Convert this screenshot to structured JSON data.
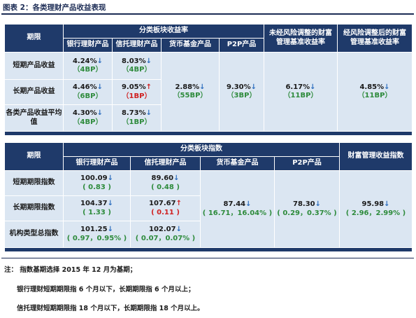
{
  "figure_title": "图表 2：各类理财产品收益表现",
  "table1": {
    "h_period": "期限",
    "h_group": "分类板块收益率",
    "h_unadj": "未经风险调整的财富管理基准收益率",
    "h_adj": "经风险调整后的财富管理基准收益率",
    "cols": [
      "银行理财产品",
      "信托理财产品",
      "货币基金产品",
      "P2P产品"
    ],
    "rows": [
      {
        "label": "短期产品收益",
        "bank": {
          "v": "4.24%",
          "d": "↓",
          "c": "（4BP）"
        },
        "trust": {
          "v": "8.03%",
          "d": "↓",
          "c": "（4BP）"
        }
      },
      {
        "label": "长期产品收益",
        "bank": {
          "v": "4.46%",
          "d": "↓",
          "c": "（6BP）"
        },
        "trust": {
          "v": "9.05%",
          "d": "↑",
          "c": "（1BP）"
        }
      },
      {
        "label": "各类产品收益平均值",
        "bank": {
          "v": "4.30%",
          "d": "↓",
          "c": "（4BP）"
        },
        "trust": {
          "v": "8.73%",
          "d": "↓",
          "c": "（1BP）"
        }
      }
    ],
    "money": {
      "v": "2.88%",
      "d": "↓",
      "c": "（55BP）"
    },
    "p2p": {
      "v": "9.30%",
      "d": "↓",
      "c": "（3BP）"
    },
    "unadj": {
      "v": "6.17%",
      "d": "↓",
      "c": "（11BP）"
    },
    "adj": {
      "v": "4.85%",
      "d": "↓",
      "c": "（11BP）"
    }
  },
  "table2": {
    "h_period": "期限",
    "h_group": "分类板块指数",
    "h_wealth": "财富管理收益指数",
    "cols": [
      "银行理财产品",
      "信托理财产品",
      "货币基金产品",
      "P2P产品"
    ],
    "rows": [
      {
        "label": "短期期限指数",
        "bank": {
          "v": "100.09",
          "d": "↓",
          "c": "( 0.83 )"
        },
        "trust": {
          "v": "89.60",
          "d": "↓",
          "c": "( 0.48 )"
        }
      },
      {
        "label": "长期期限指数",
        "bank": {
          "v": "104.37",
          "d": "↓",
          "c": "( 1.33 )"
        },
        "trust": {
          "v": "107.67",
          "d": "↑",
          "c": "( 0.11 )"
        }
      },
      {
        "label": "机构类型总指数",
        "bank": {
          "v": "101.25",
          "d": "↓",
          "c": "( 0.97，0.95% )"
        },
        "trust": {
          "v": "102.07",
          "d": "↓",
          "c": "( 0.07，0.07% )"
        }
      }
    ],
    "money": {
      "v": "87.44",
      "d": "↓",
      "c": "( 16.71，16.04% )"
    },
    "p2p": {
      "v": "78.30",
      "d": "↓",
      "c": "( 0.29，0.37% )"
    },
    "wealth": {
      "v": "95.98",
      "d": "↓",
      "c": "( 2.96，2.99% )"
    }
  },
  "notes": {
    "n1": "注：  指数基期选择 2015 年 12 月为基期；",
    "n2": "银行理财短期期限指 6 个月以下，长期期限指 6 个月以上；",
    "n3": "信托理财短期期限指 18 个月以下，长期期限指 18 个月以上。"
  }
}
